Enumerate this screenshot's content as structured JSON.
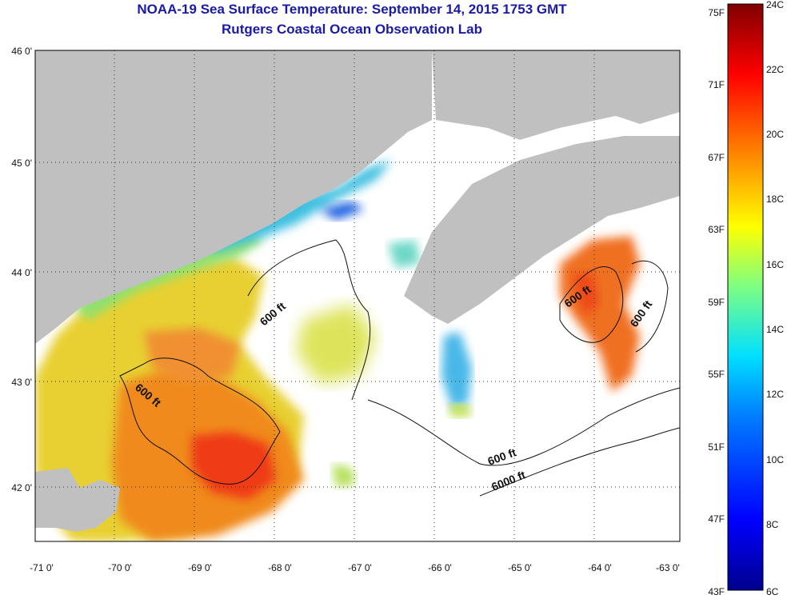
{
  "header": {
    "title": "NOAA-19 Sea Surface Temperature:  September 14, 2015 1753 GMT",
    "subtitle": "Rutgers Coastal Ocean Observation Lab"
  },
  "axes": {
    "lat_labels": [
      "46 0'",
      "45 0'",
      "44 0'",
      "43 0'",
      "42 0'"
    ],
    "lon_labels": [
      "-71 0'",
      "-70 0'",
      "-69 0'",
      "-68 0'",
      "-67 0'",
      "-66 0'",
      "-65 0'",
      "-64 0'",
      "-63 0'"
    ]
  },
  "contours": {
    "labels": [
      "600 ft",
      "600 ft",
      "600 ft",
      "600 ft",
      "600 ft",
      "6000 ft"
    ]
  },
  "colorbar": {
    "fahrenheit": [
      "75F",
      "71F",
      "67F",
      "63F",
      "59F",
      "55F",
      "51F",
      "47F",
      "43F"
    ],
    "celsius": [
      "24C",
      "22C",
      "20C",
      "18C",
      "16C",
      "14C",
      "12C",
      "10C",
      "8C",
      "6C"
    ]
  },
  "colors": {
    "land": "#c0c0c0",
    "cold": "#00008f",
    "warm": "#800000",
    "title": "#1a1aa6"
  }
}
